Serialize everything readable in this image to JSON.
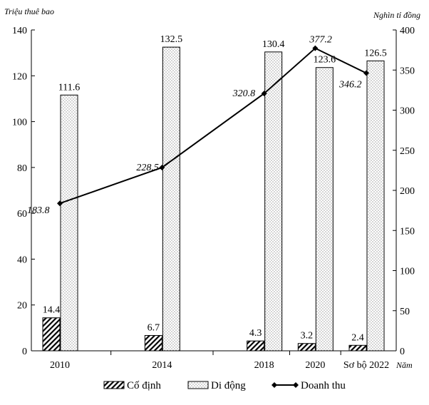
{
  "chart_data": {
    "type": "bar",
    "left_axis_title": "Triệu thuê bao",
    "right_axis_title": "Nghìn tỉ đồng",
    "x_axis_title": "Năm",
    "x": [
      2010,
      2014,
      2018,
      2020,
      2022
    ],
    "categories": [
      "2010",
      "2014",
      "2018",
      "2020",
      "Sơ bộ 2022"
    ],
    "left_ylim": [
      0,
      140
    ],
    "right_ylim": [
      0,
      400
    ],
    "left_ticks": [
      0,
      20,
      40,
      60,
      80,
      100,
      120,
      140
    ],
    "right_ticks": [
      0,
      50,
      100,
      150,
      200,
      250,
      300,
      350,
      400
    ],
    "series": [
      {
        "name": "Cố định",
        "type": "bar",
        "axis": "left",
        "pattern": "hatch",
        "values": [
          14.4,
          6.7,
          4.3,
          3.2,
          2.4
        ]
      },
      {
        "name": "Di động",
        "type": "bar",
        "axis": "left",
        "pattern": "dots",
        "values": [
          111.6,
          132.5,
          130.4,
          123.6,
          126.5
        ]
      },
      {
        "name": "Doanh thu",
        "type": "line",
        "axis": "right",
        "values": [
          183.8,
          228.5,
          320.8,
          377.2,
          346.2
        ]
      }
    ],
    "legend_position": "bottom",
    "grid": false
  }
}
